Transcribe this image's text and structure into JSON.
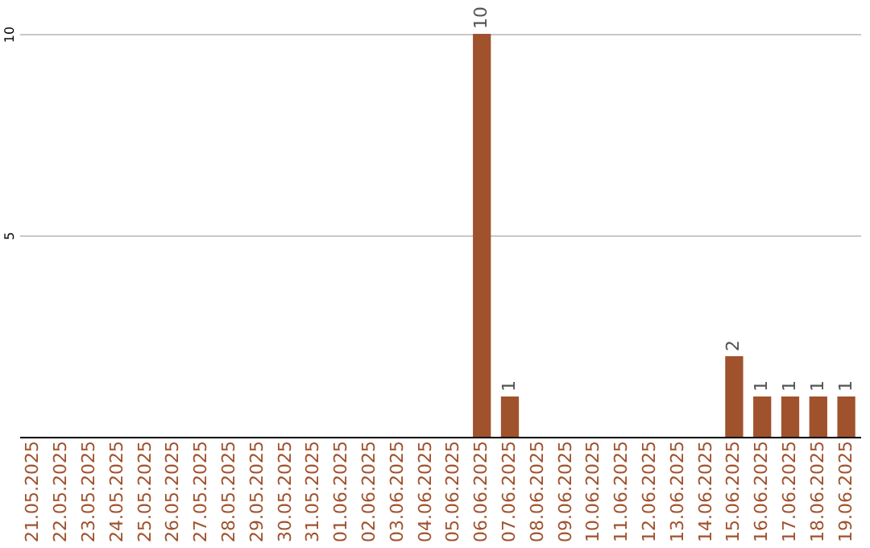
{
  "chart_data": {
    "type": "bar",
    "categories": [
      "21.05.2025",
      "22.05.2025",
      "23.05.2025",
      "24.05.2025",
      "25.05.2025",
      "26.05.2025",
      "27.05.2025",
      "28.05.2025",
      "29.05.2025",
      "30.05.2025",
      "31.05.2025",
      "01.06.2025",
      "02.06.2025",
      "03.06.2025",
      "04.06.2025",
      "05.06.2025",
      "06.06.2025",
      "07.06.2025",
      "08.06.2025",
      "09.06.2025",
      "10.06.2025",
      "11.06.2025",
      "12.06.2025",
      "13.06.2025",
      "14.06.2025",
      "15.06.2025",
      "16.06.2025",
      "17.06.2025",
      "18.06.2025",
      "19.06.2025"
    ],
    "values": [
      0,
      0,
      0,
      0,
      0,
      0,
      0,
      0,
      0,
      0,
      0,
      0,
      0,
      0,
      0,
      0,
      10,
      1,
      0,
      0,
      0,
      0,
      0,
      0,
      0,
      2,
      1,
      1,
      1,
      1
    ],
    "value_labels": [
      null,
      null,
      null,
      null,
      null,
      null,
      null,
      null,
      null,
      null,
      null,
      null,
      null,
      null,
      null,
      null,
      "10",
      "1",
      null,
      null,
      null,
      null,
      null,
      null,
      null,
      "2",
      "1",
      "1",
      "1",
      "1"
    ],
    "color": "#a0522d",
    "ylim": [
      0,
      10
    ],
    "yticks": [
      {
        "value": 0,
        "label": null
      },
      5,
      10
    ],
    "grid": "y"
  }
}
